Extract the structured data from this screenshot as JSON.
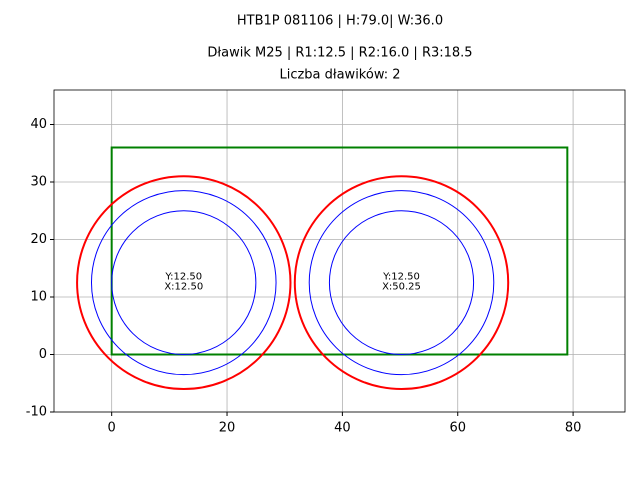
{
  "chart_data": {
    "type": "circles",
    "title": [
      "HTB1P 081106 | H:79.0| W:36.0",
      "Dławik M25 | R1:12.5 | R2:16.0 | R3:18.5",
      "Liczba dławików: 2"
    ],
    "xlim": [
      -10,
      89
    ],
    "ylim": [
      -10,
      46
    ],
    "xticks": [
      0,
      20,
      40,
      60,
      80
    ],
    "yticks": [
      -10,
      0,
      10,
      20,
      30,
      40
    ],
    "grid": true,
    "rectangle": {
      "x": [
        0,
        79
      ],
      "y": [
        0,
        36
      ],
      "color": "#008000"
    },
    "radii": [
      12.5,
      16,
      18.5
    ],
    "radius_colors": [
      "#0000ff",
      "#0000ff",
      "#ff0000"
    ],
    "glands": [
      {
        "x": 12.5,
        "y": 12.5,
        "label_y": "Y:12.50",
        "label_x": "X:12.50"
      },
      {
        "x": 50.25,
        "y": 12.5,
        "label_y": "Y:12.50",
        "label_x": "X:50.25"
      }
    ]
  }
}
